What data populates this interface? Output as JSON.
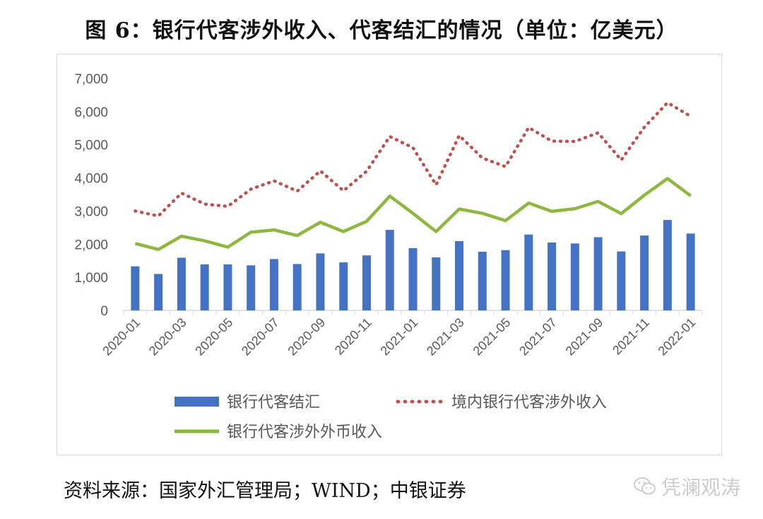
{
  "title": "图 6：银行代客涉外收入、代客结汇的情况（单位：亿美元）",
  "source": "资料来源：国家外汇管理局；WIND；中银证券",
  "watermark": "凭澜观涛",
  "watermark_icon": "wechat-icon",
  "colors": {
    "bar": "#4472c4",
    "dotted": "#c0504d",
    "green": "#8db73f",
    "axis": "#d9d9d9",
    "text": "#595959"
  },
  "chart_data": {
    "type": "bar",
    "title": "",
    "xlabel": "",
    "ylabel": "",
    "ylim": [
      0,
      7000
    ],
    "yticks": [
      "0",
      "1,000",
      "2,000",
      "3,000",
      "4,000",
      "5,000",
      "6,000",
      "7,000"
    ],
    "grid": false,
    "legend_position": "bottom",
    "categories": [
      "2020-01",
      "2020-02",
      "2020-03",
      "2020-04",
      "2020-05",
      "2020-06",
      "2020-07",
      "2020-08",
      "2020-09",
      "2020-10",
      "2020-11",
      "2020-12",
      "2021-01",
      "2021-02",
      "2021-03",
      "2021-04",
      "2021-05",
      "2021-06",
      "2021-07",
      "2021-08",
      "2021-09",
      "2021-10",
      "2021-11",
      "2021-12",
      "2022-01"
    ],
    "tick_labels": [
      "2020-01",
      "2020-03",
      "2020-05",
      "2020-07",
      "2020-09",
      "2020-11",
      "2021-01",
      "2021-03",
      "2021-05",
      "2021-07",
      "2021-09",
      "2021-11",
      "2022-01"
    ],
    "series": [
      {
        "name": "银行代客结汇",
        "type": "bar",
        "values": [
          1330,
          1100,
          1590,
          1390,
          1390,
          1360,
          1550,
          1400,
          1720,
          1450,
          1660,
          2430,
          1880,
          1600,
          2090,
          1770,
          1820,
          2290,
          2050,
          2020,
          2210,
          1780,
          2260,
          2730,
          2320
        ]
      },
      {
        "name": "境内银行代客涉外收入",
        "type": "line-dotted",
        "values": [
          3000,
          2850,
          3540,
          3210,
          3140,
          3660,
          3910,
          3600,
          4210,
          3610,
          4200,
          5250,
          4910,
          3790,
          5280,
          4600,
          4340,
          5520,
          5110,
          5100,
          5360,
          4540,
          5530,
          6270,
          5860
        ]
      },
      {
        "name": "银行代客涉外外币收入",
        "type": "line",
        "values": [
          2020,
          1840,
          2240,
          2100,
          1910,
          2360,
          2430,
          2260,
          2660,
          2380,
          2690,
          3450,
          2930,
          2380,
          3060,
          2930,
          2710,
          3240,
          2990,
          3070,
          3290,
          2920,
          3480,
          3980,
          3460
        ]
      }
    ]
  }
}
